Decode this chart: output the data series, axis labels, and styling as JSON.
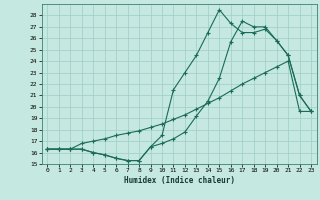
{
  "xlabel": "Humidex (Indice chaleur)",
  "bg_color": "#c5e8e0",
  "grid_color": "#9ecec4",
  "line_color": "#1a6b5a",
  "xlim": [
    -0.5,
    23.5
  ],
  "ylim": [
    15,
    29
  ],
  "yticks": [
    15,
    16,
    17,
    18,
    19,
    20,
    21,
    22,
    23,
    24,
    25,
    26,
    27,
    28
  ],
  "xticks": [
    0,
    1,
    2,
    3,
    4,
    5,
    6,
    7,
    8,
    9,
    10,
    11,
    12,
    13,
    14,
    15,
    16,
    17,
    18,
    19,
    20,
    21,
    22,
    23
  ],
  "line1_x": [
    0,
    1,
    2,
    3,
    4,
    5,
    6,
    7,
    8,
    9,
    10,
    11,
    12,
    13,
    14,
    15,
    16,
    17,
    18,
    19,
    20,
    21,
    22,
    23
  ],
  "line1_y": [
    16.3,
    16.3,
    16.3,
    16.3,
    16.0,
    15.8,
    15.5,
    15.3,
    15.3,
    16.5,
    17.5,
    21.5,
    23.0,
    24.5,
    26.5,
    28.5,
    27.3,
    26.5,
    26.5,
    26.8,
    25.8,
    24.5,
    21.0,
    19.6
  ],
  "line2_x": [
    0,
    1,
    2,
    3,
    4,
    5,
    6,
    7,
    8,
    9,
    10,
    11,
    12,
    13,
    14,
    15,
    16,
    17,
    18,
    19,
    20,
    21,
    22,
    23
  ],
  "line2_y": [
    16.3,
    16.3,
    16.3,
    16.3,
    16.0,
    15.8,
    15.5,
    15.3,
    15.3,
    16.5,
    16.8,
    17.2,
    17.8,
    19.2,
    20.5,
    22.5,
    25.7,
    27.5,
    27.0,
    27.0,
    25.8,
    24.5,
    21.0,
    19.6
  ],
  "line3_x": [
    0,
    1,
    2,
    3,
    4,
    5,
    6,
    7,
    8,
    9,
    10,
    11,
    12,
    13,
    14,
    15,
    16,
    17,
    18,
    19,
    20,
    21,
    22,
    23
  ],
  "line3_y": [
    16.3,
    16.3,
    16.3,
    16.8,
    17.0,
    17.2,
    17.5,
    17.7,
    17.9,
    18.2,
    18.5,
    18.9,
    19.3,
    19.8,
    20.3,
    20.8,
    21.4,
    22.0,
    22.5,
    23.0,
    23.5,
    24.0,
    19.6,
    19.6
  ]
}
